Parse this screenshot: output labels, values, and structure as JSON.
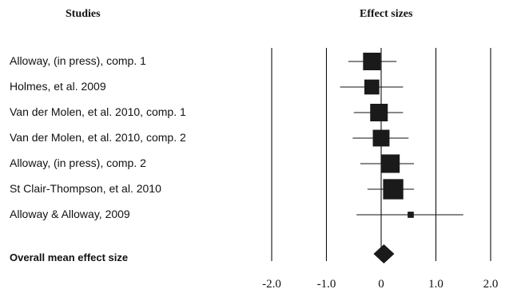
{
  "headers": {
    "studies": "Studies",
    "effect_sizes": "Effect sizes"
  },
  "chart_data": {
    "type": "forest",
    "studies_header": "Studies",
    "effects_header": "Effect sizes",
    "xlim": [
      -2.0,
      2.0
    ],
    "x_ticks": [
      -2.0,
      -1.0,
      0,
      1.0,
      2.0
    ],
    "x_tick_labels": [
      "-2.0",
      "-1.0",
      "0",
      "1.0",
      "2.0"
    ],
    "studies": [
      {
        "label": "Alloway, (in press), comp. 1",
        "effect": -0.17,
        "ci": [
          -0.6,
          0.28
        ],
        "weight": 1.0
      },
      {
        "label": "Holmes, et al. 2009",
        "effect": -0.17,
        "ci": [
          -0.75,
          0.4
        ],
        "weight": 0.85
      },
      {
        "label": "Van der Molen, et al. 2010, comp. 1",
        "effect": -0.04,
        "ci": [
          -0.5,
          0.4
        ],
        "weight": 1.0
      },
      {
        "label": "Van der Molen, et al. 2010, comp. 2",
        "effect": 0.0,
        "ci": [
          -0.52,
          0.5
        ],
        "weight": 0.95
      },
      {
        "label": "Alloway, (in press), comp. 2",
        "effect": 0.17,
        "ci": [
          -0.38,
          0.6
        ],
        "weight": 1.05
      },
      {
        "label": "St Clair-Thompson, et al. 2010",
        "effect": 0.22,
        "ci": [
          -0.25,
          0.6
        ],
        "weight": 1.15
      },
      {
        "label": "Alloway & Alloway,  2009",
        "effect": 0.54,
        "ci": [
          -0.45,
          1.5
        ],
        "weight": 0.35
      }
    ],
    "overall": {
      "label": "Overall mean effect size",
      "effect": 0.05
    }
  }
}
